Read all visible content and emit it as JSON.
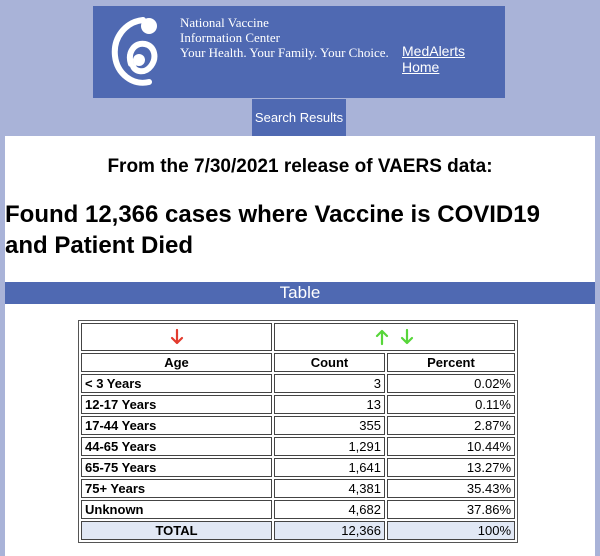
{
  "header": {
    "org_line1": "National Vaccine",
    "org_line2": "Information Center",
    "org_line3": "Your Health. Your Family. Your Choice.",
    "home_link": "MedAlerts Home"
  },
  "tab": {
    "label": "Search Results"
  },
  "release_text": "From the 7/30/2021 release of VAERS data:",
  "found_text": "Found 12,366 cases where Vaccine is COVID19 and Patient Died",
  "table_title": "Table",
  "colors": {
    "banner": "#4f69b2",
    "sort_down_active": "#e23b2e",
    "sort_neutral": "#57d63a"
  },
  "table": {
    "columns": [
      "Age",
      "Count",
      "Percent"
    ],
    "rows": [
      {
        "age": "< 3 Years",
        "count": "3",
        "percent": "0.02%"
      },
      {
        "age": "12-17 Years",
        "count": "13",
        "percent": "0.11%"
      },
      {
        "age": "17-44 Years",
        "count": "355",
        "percent": "2.87%"
      },
      {
        "age": "44-65 Years",
        "count": "1,291",
        "percent": "10.44%"
      },
      {
        "age": "65-75 Years",
        "count": "1,641",
        "percent": "13.27%"
      },
      {
        "age": "75+ Years",
        "count": "4,381",
        "percent": "35.43%"
      },
      {
        "age": "Unknown",
        "count": "4,682",
        "percent": "37.86%"
      }
    ],
    "total": {
      "label": "TOTAL",
      "count": "12,366",
      "percent": "100%"
    }
  }
}
